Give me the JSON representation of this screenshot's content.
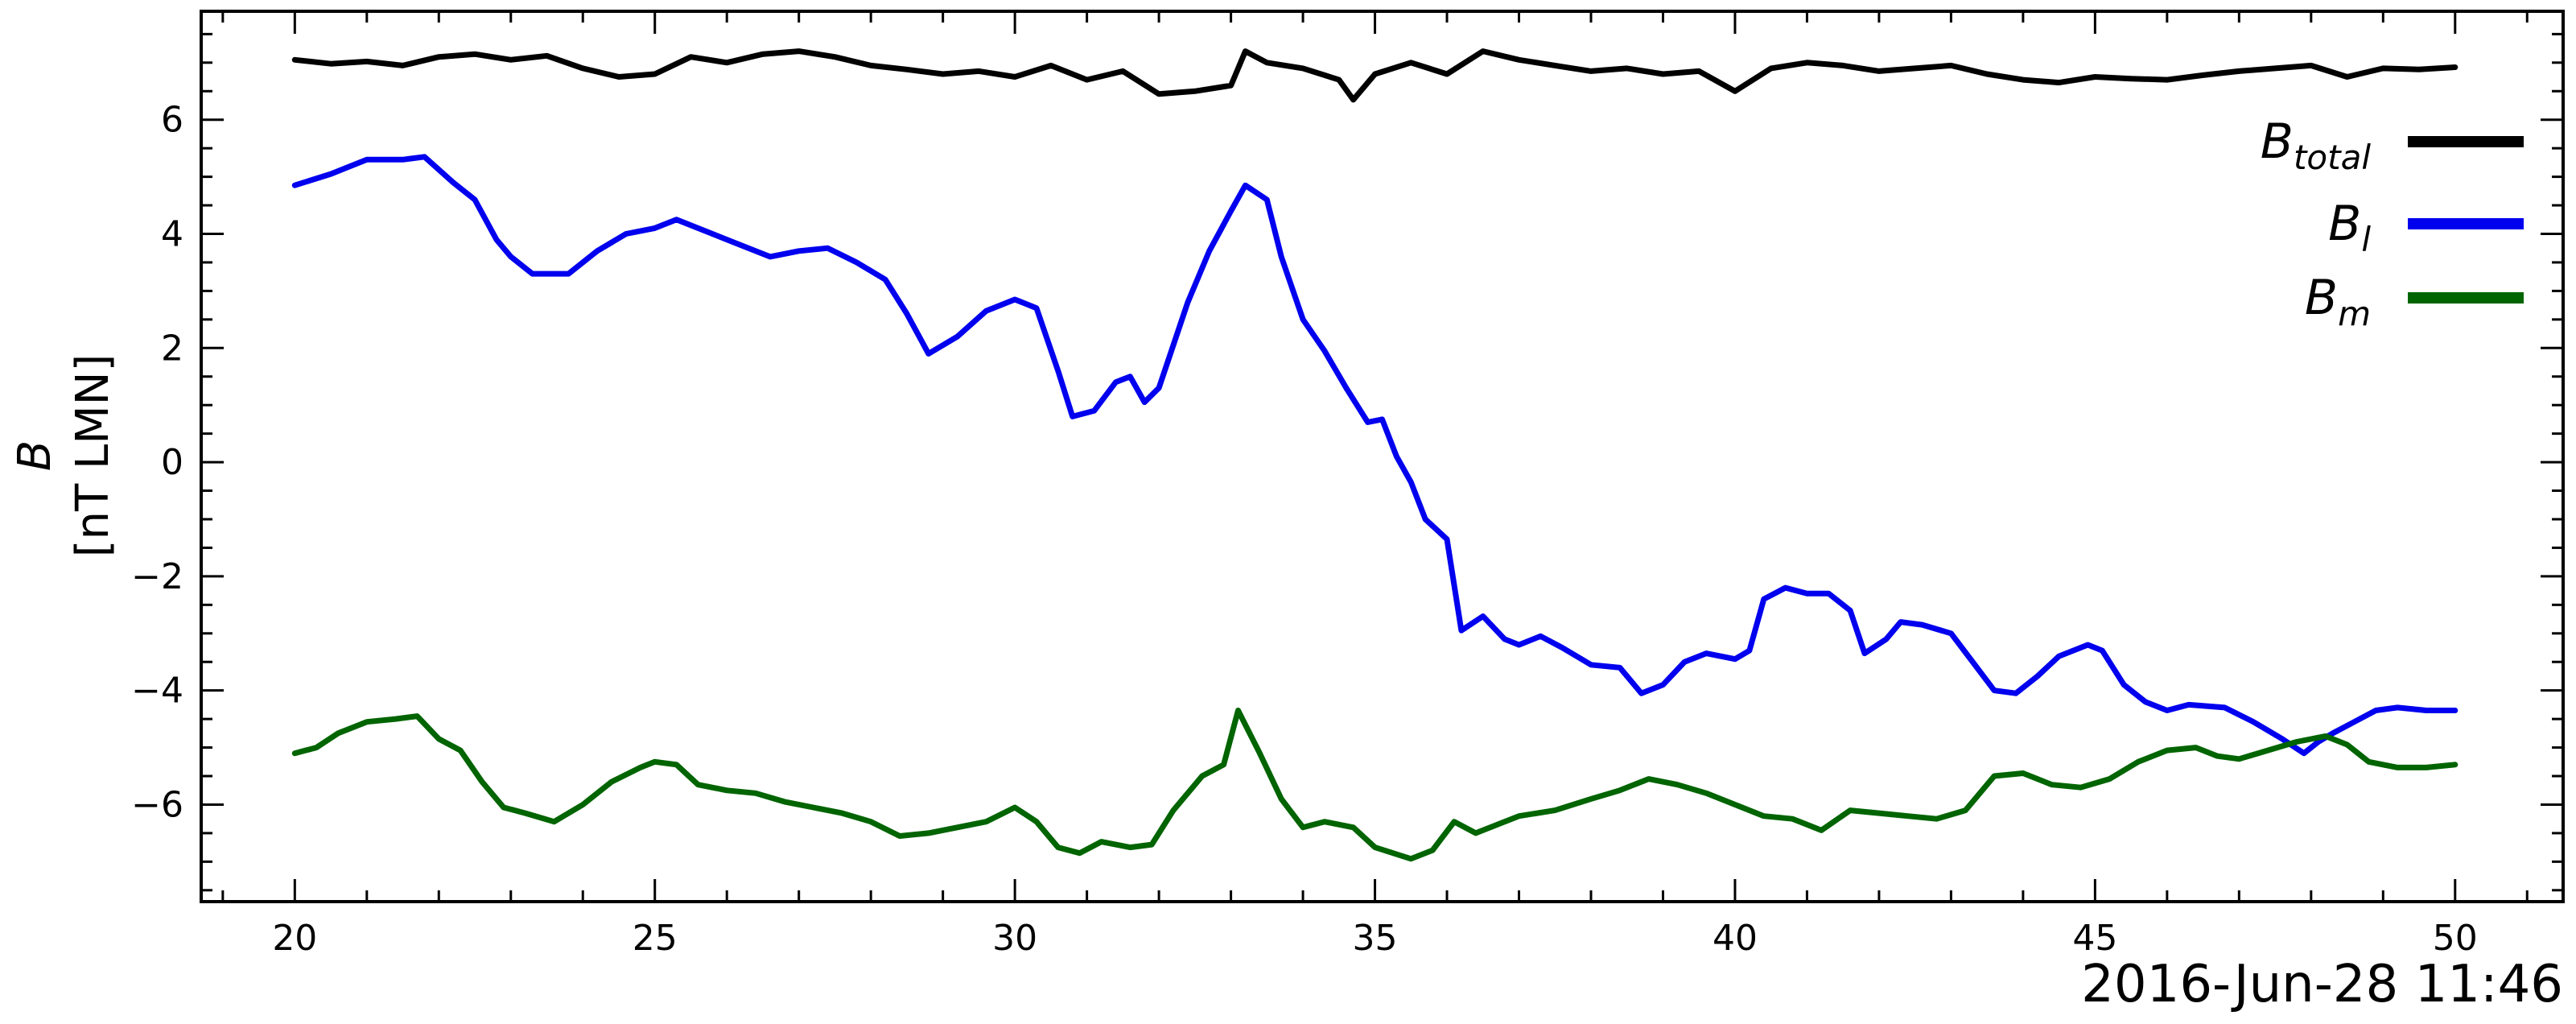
{
  "chart_data": {
    "type": "line",
    "xlabel": "",
    "ylabel_symbol": "B",
    "ylabel_units": "[nT LMN]",
    "date_label": "2016-Jun-28 11:46",
    "xlim": [
      18.7,
      51.5
    ],
    "ylim": [
      -7.7,
      7.9
    ],
    "x_ticks": [
      20,
      25,
      30,
      35,
      40,
      45,
      50
    ],
    "y_ticks": [
      -6,
      -4,
      -2,
      0,
      2,
      4,
      6
    ],
    "y_tick_labels": [
      "−6",
      "−4",
      "−2",
      "0",
      "2",
      "4",
      "6"
    ],
    "grid": false,
    "legend_placement": "top-right",
    "series": [
      {
        "name": "total",
        "legend_base": "B",
        "legend_sub": "total",
        "color": "#000000",
        "points": [
          [
            20,
            7.05
          ],
          [
            20.5,
            6.98
          ],
          [
            21,
            7.02
          ],
          [
            21.5,
            6.95
          ],
          [
            22,
            7.1
          ],
          [
            22.5,
            7.15
          ],
          [
            23,
            7.05
          ],
          [
            23.5,
            7.12
          ],
          [
            24,
            6.9
          ],
          [
            24.5,
            6.75
          ],
          [
            25,
            6.8
          ],
          [
            25.5,
            7.1
          ],
          [
            26,
            7.0
          ],
          [
            26.5,
            7.15
          ],
          [
            27,
            7.2
          ],
          [
            27.5,
            7.1
          ],
          [
            28,
            6.95
          ],
          [
            28.5,
            6.88
          ],
          [
            29,
            6.8
          ],
          [
            29.5,
            6.85
          ],
          [
            30,
            6.75
          ],
          [
            30.5,
            6.95
          ],
          [
            31,
            6.7
          ],
          [
            31.5,
            6.85
          ],
          [
            32,
            6.45
          ],
          [
            32.5,
            6.5
          ],
          [
            33,
            6.6
          ],
          [
            33.2,
            7.2
          ],
          [
            33.5,
            7.0
          ],
          [
            34,
            6.9
          ],
          [
            34.5,
            6.7
          ],
          [
            34.7,
            6.35
          ],
          [
            35,
            6.8
          ],
          [
            35.5,
            7.0
          ],
          [
            36,
            6.8
          ],
          [
            36.5,
            7.2
          ],
          [
            37,
            7.05
          ],
          [
            37.5,
            6.95
          ],
          [
            38,
            6.85
          ],
          [
            38.5,
            6.9
          ],
          [
            39,
            6.8
          ],
          [
            39.5,
            6.85
          ],
          [
            40,
            6.5
          ],
          [
            40.5,
            6.9
          ],
          [
            41,
            7.0
          ],
          [
            41.5,
            6.95
          ],
          [
            42,
            6.85
          ],
          [
            42.5,
            6.9
          ],
          [
            43,
            6.95
          ],
          [
            43.5,
            6.8
          ],
          [
            44,
            6.7
          ],
          [
            44.5,
            6.65
          ],
          [
            45,
            6.75
          ],
          [
            45.5,
            6.72
          ],
          [
            46,
            6.7
          ],
          [
            46.5,
            6.78
          ],
          [
            47,
            6.85
          ],
          [
            47.5,
            6.9
          ],
          [
            48,
            6.95
          ],
          [
            48.5,
            6.75
          ],
          [
            49,
            6.9
          ],
          [
            49.5,
            6.88
          ],
          [
            50,
            6.92
          ]
        ]
      },
      {
        "name": "l",
        "legend_base": "B",
        "legend_sub": "l",
        "color": "#0000ee",
        "points": [
          [
            20,
            4.85
          ],
          [
            20.5,
            5.05
          ],
          [
            21,
            5.3
          ],
          [
            21.5,
            5.3
          ],
          [
            21.8,
            5.35
          ],
          [
            22.2,
            4.9
          ],
          [
            22.5,
            4.6
          ],
          [
            22.8,
            3.9
          ],
          [
            23,
            3.6
          ],
          [
            23.3,
            3.3
          ],
          [
            23.8,
            3.3
          ],
          [
            24.2,
            3.7
          ],
          [
            24.6,
            4.0
          ],
          [
            25,
            4.1
          ],
          [
            25.3,
            4.25
          ],
          [
            25.8,
            4.0
          ],
          [
            26.2,
            3.8
          ],
          [
            26.6,
            3.6
          ],
          [
            27,
            3.7
          ],
          [
            27.4,
            3.75
          ],
          [
            27.8,
            3.5
          ],
          [
            28.2,
            3.2
          ],
          [
            28.5,
            2.6
          ],
          [
            28.8,
            1.9
          ],
          [
            29.2,
            2.2
          ],
          [
            29.6,
            2.65
          ],
          [
            30,
            2.85
          ],
          [
            30.3,
            2.7
          ],
          [
            30.6,
            1.6
          ],
          [
            30.8,
            0.8
          ],
          [
            31.1,
            0.9
          ],
          [
            31.4,
            1.4
          ],
          [
            31.6,
            1.5
          ],
          [
            31.8,
            1.05
          ],
          [
            32,
            1.3
          ],
          [
            32.4,
            2.8
          ],
          [
            32.7,
            3.7
          ],
          [
            33,
            4.4
          ],
          [
            33.2,
            4.85
          ],
          [
            33.5,
            4.6
          ],
          [
            33.7,
            3.6
          ],
          [
            34,
            2.5
          ],
          [
            34.3,
            1.95
          ],
          [
            34.6,
            1.3
          ],
          [
            34.9,
            0.7
          ],
          [
            35.1,
            0.75
          ],
          [
            35.3,
            0.1
          ],
          [
            35.5,
            -0.35
          ],
          [
            35.7,
            -1.0
          ],
          [
            36,
            -1.35
          ],
          [
            36.2,
            -2.95
          ],
          [
            36.5,
            -2.7
          ],
          [
            36.8,
            -3.1
          ],
          [
            37,
            -3.2
          ],
          [
            37.3,
            -3.05
          ],
          [
            37.6,
            -3.25
          ],
          [
            38,
            -3.55
          ],
          [
            38.4,
            -3.6
          ],
          [
            38.7,
            -4.05
          ],
          [
            39,
            -3.9
          ],
          [
            39.3,
            -3.5
          ],
          [
            39.6,
            -3.35
          ],
          [
            40,
            -3.45
          ],
          [
            40.2,
            -3.3
          ],
          [
            40.4,
            -2.4
          ],
          [
            40.7,
            -2.2
          ],
          [
            41,
            -2.3
          ],
          [
            41.3,
            -2.3
          ],
          [
            41.6,
            -2.6
          ],
          [
            41.8,
            -3.35
          ],
          [
            42.1,
            -3.1
          ],
          [
            42.3,
            -2.8
          ],
          [
            42.6,
            -2.85
          ],
          [
            43,
            -3.0
          ],
          [
            43.3,
            -3.5
          ],
          [
            43.6,
            -4.0
          ],
          [
            43.9,
            -4.05
          ],
          [
            44.2,
            -3.75
          ],
          [
            44.5,
            -3.4
          ],
          [
            44.9,
            -3.2
          ],
          [
            45.1,
            -3.3
          ],
          [
            45.4,
            -3.9
          ],
          [
            45.7,
            -4.2
          ],
          [
            46,
            -4.35
          ],
          [
            46.3,
            -4.25
          ],
          [
            46.8,
            -4.3
          ],
          [
            47.2,
            -4.55
          ],
          [
            47.6,
            -4.85
          ],
          [
            47.9,
            -5.1
          ],
          [
            48.1,
            -4.9
          ],
          [
            48.3,
            -4.75
          ],
          [
            48.6,
            -4.55
          ],
          [
            48.9,
            -4.35
          ],
          [
            49.2,
            -4.3
          ],
          [
            49.6,
            -4.35
          ],
          [
            50,
            -4.35
          ]
        ]
      },
      {
        "name": "m",
        "legend_base": "B",
        "legend_sub": "m",
        "color": "#006400",
        "points": [
          [
            20,
            -5.1
          ],
          [
            20.3,
            -5.0
          ],
          [
            20.6,
            -4.75
          ],
          [
            21,
            -4.55
          ],
          [
            21.4,
            -4.5
          ],
          [
            21.7,
            -4.45
          ],
          [
            22,
            -4.85
          ],
          [
            22.3,
            -5.05
          ],
          [
            22.6,
            -5.6
          ],
          [
            22.9,
            -6.05
          ],
          [
            23.2,
            -6.15
          ],
          [
            23.6,
            -6.3
          ],
          [
            24,
            -6.0
          ],
          [
            24.4,
            -5.6
          ],
          [
            24.8,
            -5.35
          ],
          [
            25,
            -5.25
          ],
          [
            25.3,
            -5.3
          ],
          [
            25.6,
            -5.65
          ],
          [
            26,
            -5.75
          ],
          [
            26.4,
            -5.8
          ],
          [
            26.8,
            -5.95
          ],
          [
            27.2,
            -6.05
          ],
          [
            27.6,
            -6.15
          ],
          [
            28,
            -6.3
          ],
          [
            28.4,
            -6.55
          ],
          [
            28.8,
            -6.5
          ],
          [
            29.2,
            -6.4
          ],
          [
            29.6,
            -6.3
          ],
          [
            30,
            -6.05
          ],
          [
            30.3,
            -6.3
          ],
          [
            30.6,
            -6.75
          ],
          [
            30.9,
            -6.85
          ],
          [
            31.2,
            -6.65
          ],
          [
            31.6,
            -6.75
          ],
          [
            31.9,
            -6.7
          ],
          [
            32.2,
            -6.1
          ],
          [
            32.6,
            -5.5
          ],
          [
            32.9,
            -5.3
          ],
          [
            33.1,
            -4.35
          ],
          [
            33.4,
            -5.1
          ],
          [
            33.7,
            -5.9
          ],
          [
            34,
            -6.4
          ],
          [
            34.3,
            -6.3
          ],
          [
            34.7,
            -6.4
          ],
          [
            35,
            -6.75
          ],
          [
            35.5,
            -6.95
          ],
          [
            35.8,
            -6.8
          ],
          [
            36.1,
            -6.3
          ],
          [
            36.4,
            -6.5
          ],
          [
            36.7,
            -6.35
          ],
          [
            37,
            -6.2
          ],
          [
            37.5,
            -6.1
          ],
          [
            38,
            -5.9
          ],
          [
            38.4,
            -5.75
          ],
          [
            38.8,
            -5.55
          ],
          [
            39.2,
            -5.65
          ],
          [
            39.6,
            -5.8
          ],
          [
            40,
            -6.0
          ],
          [
            40.4,
            -6.2
          ],
          [
            40.8,
            -6.25
          ],
          [
            41.2,
            -6.45
          ],
          [
            41.6,
            -6.1
          ],
          [
            42,
            -6.15
          ],
          [
            42.4,
            -6.2
          ],
          [
            42.8,
            -6.25
          ],
          [
            43.2,
            -6.1
          ],
          [
            43.6,
            -5.5
          ],
          [
            44,
            -5.45
          ],
          [
            44.4,
            -5.65
          ],
          [
            44.8,
            -5.7
          ],
          [
            45.2,
            -5.55
          ],
          [
            45.6,
            -5.25
          ],
          [
            46,
            -5.05
          ],
          [
            46.4,
            -5.0
          ],
          [
            46.7,
            -5.15
          ],
          [
            47,
            -5.2
          ],
          [
            47.4,
            -5.05
          ],
          [
            47.8,
            -4.9
          ],
          [
            48.2,
            -4.8
          ],
          [
            48.5,
            -4.95
          ],
          [
            48.8,
            -5.25
          ],
          [
            49.2,
            -5.35
          ],
          [
            49.6,
            -5.35
          ],
          [
            50,
            -5.3
          ]
        ]
      }
    ]
  }
}
